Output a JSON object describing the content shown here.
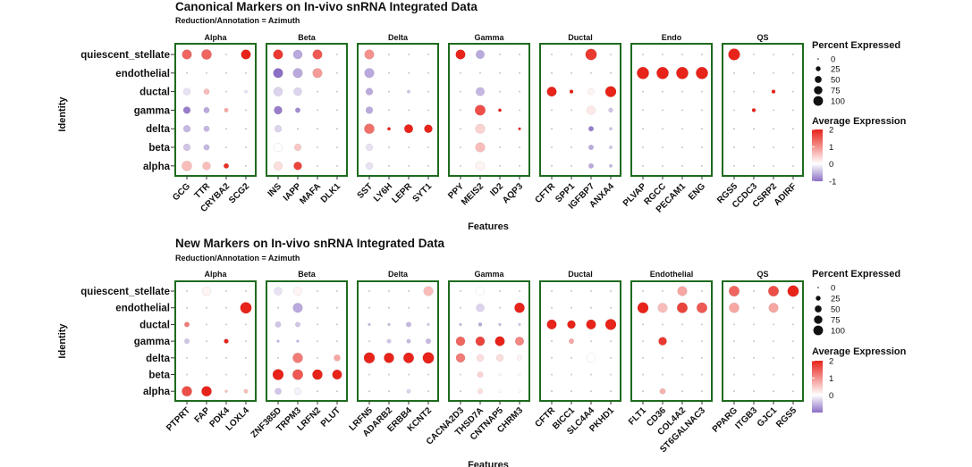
{
  "figure": {
    "colors": {
      "high": "#e8231a",
      "mid": "#ffffff",
      "low": "#8b6fc4",
      "panel_border": "#1e6b1e",
      "text": "#111111"
    }
  },
  "chart_data": [
    {
      "type": "dotplot",
      "title": "Canonical Markers on In-vivo snRNA Integrated Data",
      "subtitle": "Reduction/Annotation = Azimuth",
      "xlabel": "Features",
      "ylabel": "Identity",
      "identities": [
        "quiescent_stellate",
        "endothelial",
        "ductal",
        "gamma",
        "delta",
        "beta",
        "alpha"
      ],
      "groups": [
        {
          "name": "Alpha",
          "features": [
            "GCG",
            "TTR",
            "CRYBA2",
            "SCG2"
          ]
        },
        {
          "name": "Beta",
          "features": [
            "INS",
            "IAPP",
            "MAFA",
            "DLK1"
          ]
        },
        {
          "name": "Delta",
          "features": [
            "SST",
            "LY6H",
            "LEPR",
            "SYT1"
          ]
        },
        {
          "name": "Gamma",
          "features": [
            "PPY",
            "MEIS2",
            "ID2",
            "AQP3"
          ]
        },
        {
          "name": "Ductal",
          "features": [
            "CFTR",
            "SPP1",
            "IGFBP7",
            "ANXA4"
          ]
        },
        {
          "name": "Endo",
          "features": [
            "PLVAP",
            "RGCC",
            "PECAM1",
            "ENG"
          ]
        },
        {
          "name": "QS",
          "features": [
            "RGS5",
            "CCDC3",
            "CSRP2",
            "ADIRF"
          ]
        }
      ],
      "pct_matrix": [
        [
          55,
          60,
          2,
          55,
          55,
          50,
          55,
          2,
          55,
          2,
          2,
          2,
          55,
          45,
          2,
          2,
          2,
          2,
          75,
          2,
          2,
          2,
          2,
          2,
          80,
          2,
          2,
          2
        ],
        [
          2,
          2,
          2,
          2,
          55,
          55,
          55,
          2,
          55,
          2,
          2,
          2,
          2,
          2,
          2,
          2,
          2,
          2,
          2,
          2,
          85,
          85,
          85,
          85,
          2,
          2,
          2,
          2
        ],
        [
          30,
          20,
          2,
          6,
          50,
          40,
          2,
          2,
          30,
          2,
          6,
          2,
          2,
          45,
          2,
          2,
          55,
          8,
          25,
          70,
          2,
          2,
          2,
          2,
          2,
          2,
          8,
          2
        ],
        [
          30,
          20,
          10,
          2,
          40,
          15,
          2,
          2,
          30,
          2,
          2,
          2,
          2,
          65,
          6,
          2,
          2,
          2,
          45,
          12,
          2,
          2,
          2,
          2,
          2,
          8,
          2,
          2
        ],
        [
          30,
          20,
          2,
          2,
          30,
          2,
          2,
          2,
          60,
          6,
          45,
          40,
          2,
          55,
          2,
          4,
          2,
          2,
          15,
          6,
          2,
          2,
          2,
          2,
          2,
          2,
          2,
          2
        ],
        [
          30,
          20,
          2,
          2,
          45,
          30,
          2,
          2,
          30,
          2,
          2,
          2,
          2,
          55,
          2,
          2,
          2,
          2,
          15,
          6,
          2,
          2,
          2,
          2,
          2,
          2,
          2,
          2
        ],
        [
          60,
          40,
          15,
          2,
          45,
          40,
          2,
          2,
          30,
          2,
          2,
          2,
          2,
          50,
          2,
          2,
          2,
          2,
          15,
          6,
          2,
          2,
          2,
          2,
          2,
          2,
          2,
          2
        ]
      ],
      "avg_matrix": [
        [
          1.4,
          1.4,
          0,
          2,
          1.8,
          -0.6,
          1.5,
          0,
          1.0,
          0,
          0,
          0,
          2,
          -0.6,
          0,
          0,
          0,
          0,
          1.8,
          0,
          0,
          0,
          0,
          0,
          2,
          0,
          0,
          0
        ],
        [
          0,
          0,
          0,
          0,
          -1,
          -0.6,
          0.9,
          0,
          -0.6,
          0,
          0,
          0,
          0,
          0,
          0,
          0,
          0,
          0,
          0,
          0,
          2,
          2,
          2,
          2,
          0,
          0,
          0,
          0
        ],
        [
          -0.2,
          0.6,
          0,
          -0.2,
          -0.3,
          -0.3,
          0,
          0,
          -0.6,
          0,
          -0.4,
          0,
          0,
          -0.5,
          0,
          0,
          2,
          2,
          0.1,
          2,
          0,
          0,
          0,
          0,
          0,
          0,
          2,
          0
        ],
        [
          -0.9,
          -0.6,
          0.8,
          0,
          -0.9,
          -0.8,
          0,
          0,
          -0.6,
          0,
          0,
          0,
          0,
          1.6,
          2,
          0,
          0,
          0,
          0.2,
          -0.4,
          0,
          0,
          0,
          0,
          0,
          2,
          0,
          0
        ],
        [
          -0.5,
          -0.5,
          0,
          0,
          -0.3,
          0,
          0,
          0,
          1.3,
          2,
          2,
          2,
          0,
          0.4,
          0,
          2,
          0,
          0,
          -0.9,
          -0.4,
          0,
          0,
          0,
          0,
          0,
          0,
          0,
          0
        ],
        [
          -0.4,
          -0.5,
          0,
          0,
          0,
          0.5,
          0,
          0,
          -0.2,
          0,
          0,
          0,
          0,
          0.6,
          0,
          0,
          0,
          0,
          -0.6,
          -0.4,
          0,
          0,
          0,
          0,
          0,
          0,
          0,
          0
        ],
        [
          0.6,
          0.6,
          1.9,
          0,
          0.3,
          1.7,
          0,
          0,
          -0.2,
          0,
          0,
          0,
          0,
          0.1,
          0,
          0,
          0,
          0,
          -0.6,
          -0.5,
          0,
          0,
          0,
          0,
          0,
          0,
          0,
          0
        ]
      ],
      "legend_size": {
        "title": "Percent Expressed",
        "values": [
          0,
          25,
          50,
          75,
          100
        ]
      },
      "legend_color": {
        "title": "Average Expression",
        "ticks": [
          2,
          1,
          0,
          -1
        ],
        "range": [
          -1,
          2
        ]
      }
    },
    {
      "type": "dotplot",
      "title": "New Markers on In-vivo snRNA Integrated Data",
      "subtitle": "Reduction/Annotation = Azimuth",
      "xlabel": "Features",
      "ylabel": "Identity",
      "identities": [
        "quiescent_stellate",
        "endothelial",
        "ductal",
        "gamma",
        "delta",
        "beta",
        "alpha"
      ],
      "groups": [
        {
          "name": "Alpha",
          "features": [
            "PTPRT",
            "FAP",
            "PDK4",
            "LOXL4"
          ]
        },
        {
          "name": "Beta",
          "features": [
            "ZNF385D",
            "TRPM3",
            "LRFN2",
            "PLUT"
          ]
        },
        {
          "name": "Delta",
          "features": [
            "LRFN5",
            "ADARB2",
            "ERBB4",
            "KCNT2"
          ]
        },
        {
          "name": "Gamma",
          "features": [
            "CACNA2D3",
            "THSD7A",
            "CNTNAP5",
            "CHRM3"
          ]
        },
        {
          "name": "Ductal",
          "features": [
            "CFTR",
            "BICC1",
            "SLC4A4",
            "PKHD1"
          ]
        },
        {
          "name": "Endothelial",
          "features": [
            "FLT1",
            "CD36",
            "COL4A2",
            "ST6GALNAC3"
          ]
        },
        {
          "name": "QS",
          "features": [
            "PPARG",
            "ITGB3",
            "GJC1",
            "RGS5"
          ]
        }
      ],
      "pct_matrix": [
        [
          2,
          50,
          2,
          2,
          40,
          45,
          2,
          2,
          2,
          2,
          2,
          55,
          2,
          50,
          2,
          2,
          2,
          2,
          2,
          2,
          2,
          2,
          55,
          2,
          65,
          2,
          65,
          75
        ],
        [
          2,
          2,
          2,
          75,
          2,
          55,
          2,
          2,
          2,
          2,
          2,
          2,
          2,
          40,
          2,
          60,
          2,
          2,
          2,
          2,
          70,
          55,
          65,
          65,
          60,
          2,
          55,
          2
        ],
        [
          15,
          2,
          2,
          2,
          20,
          15,
          2,
          2,
          4,
          4,
          15,
          4,
          4,
          8,
          4,
          4,
          55,
          40,
          55,
          70,
          2,
          2,
          2,
          2,
          2,
          2,
          2,
          2
        ],
        [
          15,
          2,
          12,
          2,
          4,
          4,
          2,
          2,
          2,
          10,
          10,
          15,
          50,
          50,
          55,
          45,
          2,
          15,
          2,
          2,
          2,
          40,
          2,
          2,
          2,
          2,
          2,
          2
        ],
        [
          2,
          2,
          2,
          2,
          2,
          60,
          2,
          25,
          70,
          60,
          65,
          75,
          50,
          30,
          30,
          15,
          2,
          2,
          50,
          2,
          2,
          2,
          2,
          2,
          2,
          2,
          2,
          2
        ],
        [
          2,
          2,
          2,
          2,
          70,
          65,
          60,
          55,
          2,
          2,
          2,
          2,
          2,
          20,
          4,
          4,
          2,
          2,
          2,
          2,
          2,
          2,
          2,
          2,
          2,
          2,
          2,
          2
        ],
        [
          60,
          60,
          4,
          10,
          25,
          30,
          2,
          2,
          2,
          2,
          10,
          2,
          2,
          15,
          4,
          4,
          2,
          2,
          2,
          2,
          2,
          20,
          2,
          2,
          2,
          2,
          2,
          2
        ]
      ],
      "avg_matrix": [
        [
          0,
          0.1,
          0,
          0,
          -0.2,
          0.1,
          0,
          0,
          0,
          0,
          0,
          0.6,
          0,
          0,
          0,
          0,
          0,
          0,
          0,
          0,
          0,
          0,
          0.8,
          0,
          1.4,
          0,
          1.6,
          2
        ],
        [
          0,
          0,
          0,
          2,
          0,
          -0.6,
          0,
          0,
          0,
          0,
          0,
          0,
          0,
          -0.3,
          0,
          2,
          0,
          0,
          0,
          0,
          2,
          0.6,
          1.7,
          1.5,
          0.8,
          0,
          0.8,
          0
        ],
        [
          1.2,
          0,
          0,
          0,
          -0.4,
          -0.4,
          0,
          0,
          -0.5,
          -0.5,
          -0.5,
          -0.4,
          -0.5,
          -0.6,
          -0.5,
          -0.4,
          2,
          2,
          2,
          2,
          0,
          0,
          0,
          0,
          0,
          0,
          0,
          0
        ],
        [
          -0.4,
          0,
          2,
          0,
          -0.5,
          -0.5,
          0,
          0,
          0,
          -0.4,
          -0.5,
          -0.5,
          1.4,
          1.7,
          2,
          1.1,
          0,
          0.8,
          0,
          0,
          0,
          1.8,
          0,
          0,
          0,
          0,
          0,
          0
        ],
        [
          0,
          0,
          0,
          0,
          0,
          1.2,
          0,
          0.8,
          2,
          2,
          2,
          2,
          1.2,
          0.3,
          0.3,
          0.1,
          0,
          0,
          0,
          0,
          0,
          0,
          0,
          0,
          0,
          0,
          0,
          0
        ],
        [
          0,
          0,
          0,
          0,
          2,
          1.5,
          2,
          2,
          0,
          0,
          0,
          0,
          0,
          0.4,
          0,
          0,
          0,
          0,
          0,
          0,
          0,
          0,
          0,
          0,
          0,
          0,
          0,
          0
        ],
        [
          1.6,
          2,
          0.6,
          0.6,
          -0.4,
          -0.1,
          0,
          0,
          0,
          0,
          -0.3,
          0,
          0,
          0.3,
          0,
          0,
          0,
          0,
          0,
          0,
          0,
          0.7,
          0,
          0,
          0,
          0,
          0,
          0
        ]
      ],
      "legend_size": {
        "title": "Percent Expressed",
        "values": [
          0,
          25,
          50,
          75,
          100
        ]
      },
      "legend_color": {
        "title": "Average Expression",
        "ticks": [
          2,
          1,
          0
        ],
        "range": [
          -1,
          2
        ]
      }
    }
  ]
}
